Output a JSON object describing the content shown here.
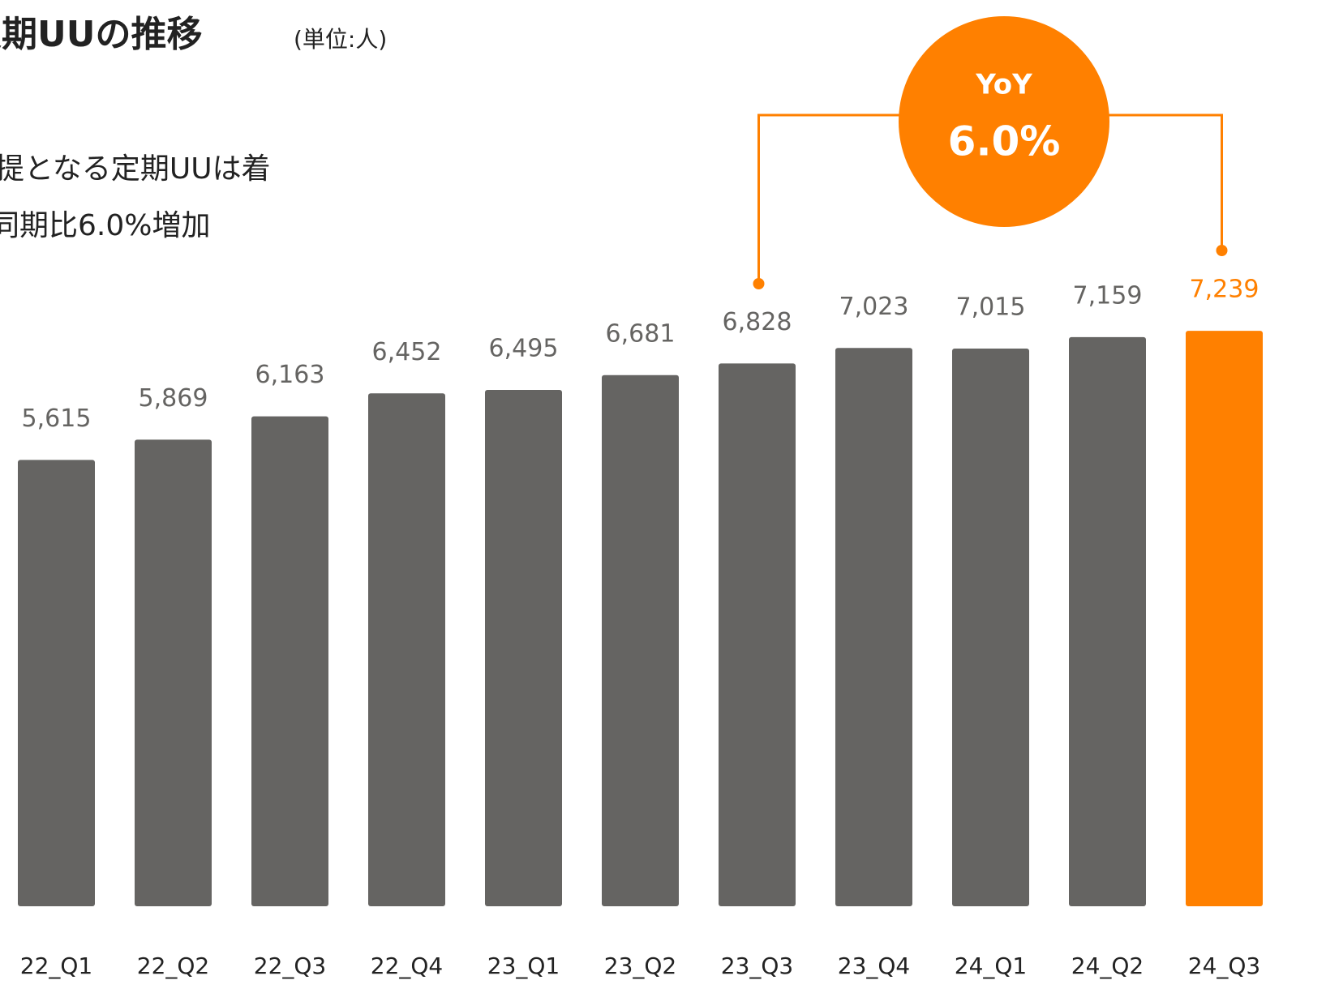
{
  "chart_data": {
    "type": "bar",
    "title": "定期UUの推移",
    "subtitle": "(単位:人)",
    "text_lines": [
      "提となる定期UUは着",
      "同期比6.0%増加"
    ],
    "annotation": {
      "label": "YoY",
      "value": "6.0%"
    },
    "categories": [
      "22_Q1",
      "22_Q2",
      "22_Q3",
      "22_Q4",
      "23_Q1",
      "23_Q2",
      "23_Q3",
      "23_Q4",
      "24_Q1",
      "24_Q2",
      "24_Q3"
    ],
    "values": [
      5615,
      5869,
      6163,
      6452,
      6495,
      6681,
      6828,
      7023,
      7015,
      7159,
      7239
    ],
    "value_labels": [
      "5,615",
      "5,869",
      "6,163",
      "6,452",
      "6,495",
      "6,681",
      "6,828",
      "7,023",
      "7,015",
      "7,159",
      "7,239"
    ],
    "colors": [
      "#656462",
      "#656462",
      "#656462",
      "#656462",
      "#656462",
      "#656462",
      "#656462",
      "#656462",
      "#656462",
      "#656462",
      "#ff8000"
    ],
    "annotation_color": "#ff8000",
    "ylim": [
      0,
      11400
    ]
  }
}
